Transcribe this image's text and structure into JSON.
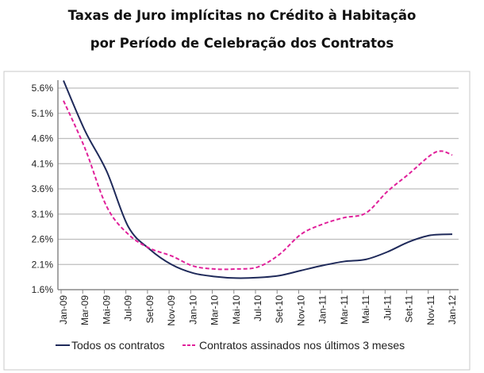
{
  "chart_data": {
    "type": "line",
    "title": "Taxas de Juro implícitas no Crédito à Habitação",
    "subtitle": "por Período de Celebração dos Contratos",
    "xlabel": "",
    "ylabel": "",
    "ylim": [
      1.6,
      5.6
    ],
    "yticks": [
      "1.6%",
      "2.1%",
      "2.6%",
      "3.1%",
      "3.6%",
      "4.1%",
      "4.6%",
      "5.1%",
      "5.6%"
    ],
    "categories": [
      "Jan-09",
      "Mar-09",
      "Mai-09",
      "Jul-09",
      "Set-09",
      "Nov-09",
      "Jan-10",
      "Mar-10",
      "Mai-10",
      "Jul-10",
      "Set-10",
      "Nov-10",
      "Jan-11",
      "Mar-11",
      "Mai-11",
      "Jul-11",
      "Set-11",
      "Nov-11",
      "Jan-12"
    ],
    "grid": true,
    "legend": "bottom",
    "series": [
      {
        "name": "Todos os contratos",
        "color": "#1f2a5a",
        "style": "solid",
        "values": [
          5.75,
          4.75,
          3.95,
          2.85,
          2.4,
          2.1,
          1.93,
          1.86,
          1.83,
          1.84,
          1.88,
          1.98,
          2.08,
          2.16,
          2.2,
          2.35,
          2.55,
          2.68,
          2.7
        ]
      },
      {
        "name": "Contratos assinados nos últimos 3 meses",
        "color": "#e0209a",
        "style": "dashed",
        "values": [
          5.35,
          4.4,
          3.25,
          2.7,
          2.42,
          2.27,
          2.07,
          2.01,
          2.01,
          2.05,
          2.3,
          2.7,
          2.9,
          3.03,
          3.12,
          3.55,
          3.9,
          4.27,
          4.27
        ],
        "extra_point": {
          "x": "Dec-11",
          "y": 4.35
        }
      }
    ]
  },
  "colors": {
    "grid": "#bdbdbd",
    "axis": "#888888",
    "border": "#c8c8c8"
  }
}
